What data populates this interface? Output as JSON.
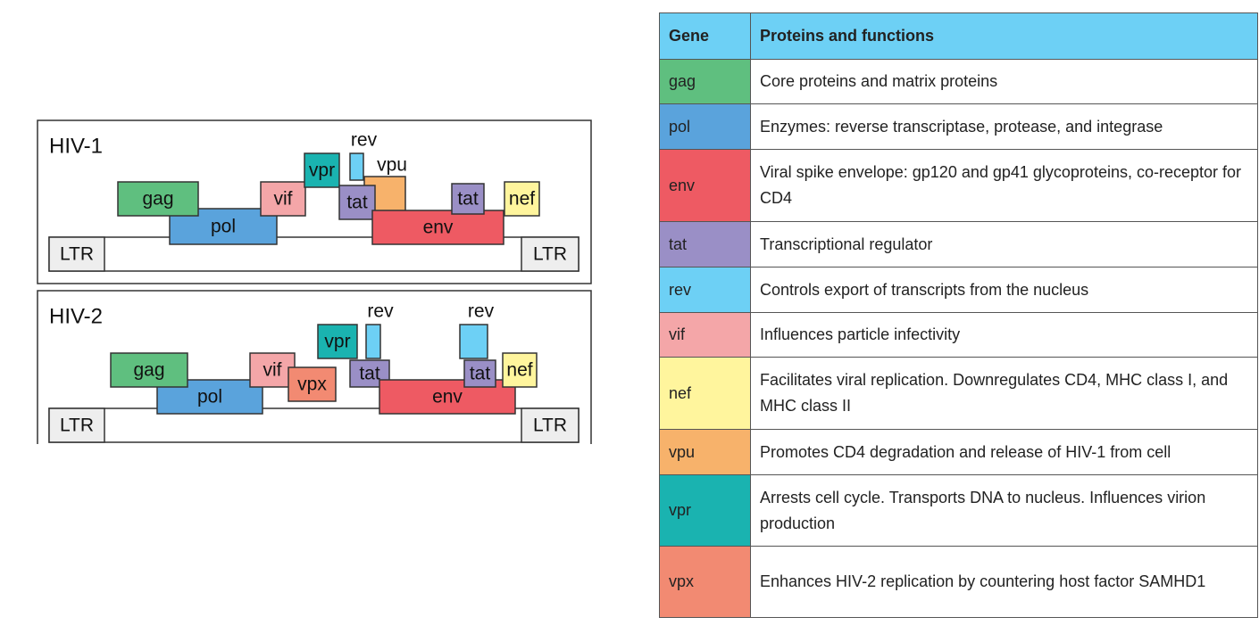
{
  "diagram": {
    "hiv1": {
      "title": "HIV-1",
      "ltr": [
        "LTR",
        "LTR"
      ],
      "genes": [
        "pol",
        "gag",
        "vif",
        "vpr",
        "rev",
        "vpu",
        "tat",
        "env",
        "tat",
        "nef"
      ]
    },
    "hiv2": {
      "title": "HIV-2",
      "ltr": [
        "LTR",
        "LTR"
      ],
      "genes": [
        "pol",
        "gag",
        "vif",
        "vpx",
        "vpr",
        "rev",
        "tat",
        "env",
        "rev",
        "tat",
        "nef"
      ]
    }
  },
  "table": {
    "header": [
      "Gene",
      "Proteins and functions"
    ],
    "rows": [
      [
        "gag",
        "Core proteins and matrix proteins"
      ],
      [
        "pol",
        "Enzymes: reverse transcriptase, protease, and integrase"
      ],
      [
        "env",
        "Viral spike envelope: gp120 and gp41 glycoproteins, co-receptor for CD4"
      ],
      [
        "tat",
        "Transcriptional regulator"
      ],
      [
        "rev",
        "Controls export of transcripts from the nucleus"
      ],
      [
        "vif",
        "Influences particle infectivity"
      ],
      [
        "nef",
        "Facilitates viral replication. Downregulates CD4, MHC class I, and MHC class II"
      ],
      [
        "vpu",
        "Promotes CD4 degradation and release of HIV-1 from cell"
      ],
      [
        "vpr",
        "Arrests cell cycle. Transports DNA to nucleus. Influences virion production"
      ],
      [
        "vpx",
        "Enhances HIV-2 replication by countering host factor SAMHD1"
      ]
    ]
  }
}
